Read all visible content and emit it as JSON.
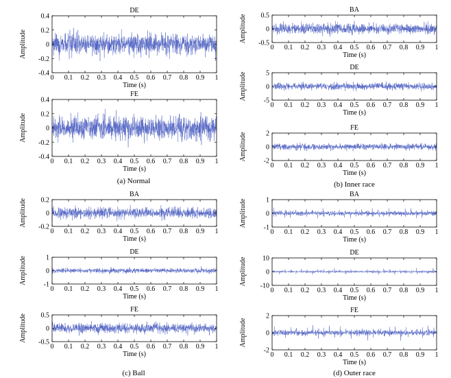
{
  "chart_data": [
    {
      "type": "line",
      "panel": "a",
      "title": "DE",
      "xlabel": "Time (s)",
      "ylabel": "Amplitude",
      "xlim": [
        0,
        1
      ],
      "ylim": [
        -0.4,
        0.4
      ],
      "xticks": [
        "0",
        "0.1",
        "0.2",
        "0.3",
        "0.4",
        "0.5",
        "0.6",
        "0.7",
        "0.8",
        "0.9",
        "1"
      ],
      "yticks": [
        "-0.4",
        "-0.2",
        "0",
        "0.2",
        "0.4"
      ],
      "noise_amplitude": 0.07,
      "spikes_per_second": 0,
      "color": "#4a5cc0"
    },
    {
      "type": "line",
      "panel": "a",
      "title": "FE",
      "xlabel": "Time (s)",
      "ylabel": "Amplitude",
      "xlim": [
        0,
        1
      ],
      "ylim": [
        -0.4,
        0.4
      ],
      "xticks": [
        "0",
        "0.1",
        "0.2",
        "0.3",
        "0.4",
        "0.5",
        "0.6",
        "0.7",
        "0.8",
        "0.9",
        "1"
      ],
      "yticks": [
        "-0.4",
        "-0.2",
        "0",
        "0.2",
        "0.4"
      ],
      "noise_amplitude": 0.08,
      "spikes_per_second": 0,
      "color": "#4a5cc0"
    },
    {
      "type": "line",
      "panel": "b",
      "title": "BA",
      "xlabel": "Time (s)",
      "ylabel": "Amplitude",
      "xlim": [
        0,
        1
      ],
      "ylim": [
        -0.5,
        0.5
      ],
      "xticks": [
        "0",
        "0.1",
        "0.2",
        "0.3",
        "0.4",
        "0.5",
        "0.6",
        "0.7",
        "0.8",
        "0.9",
        "1"
      ],
      "yticks": [
        "-0.5",
        "0",
        "0.5"
      ],
      "noise_amplitude": 0.09,
      "spikes_per_second": 0,
      "color": "#4a5cc0"
    },
    {
      "type": "line",
      "panel": "b",
      "title": "DE",
      "xlabel": "Time (s)",
      "ylabel": "Amplitude",
      "xlim": [
        0,
        1
      ],
      "ylim": [
        -5,
        5
      ],
      "xticks": [
        "0",
        "0.1",
        "0.2",
        "0.3",
        "0.4",
        "0.5",
        "0.6",
        "0.7",
        "0.8",
        "0.9",
        "1"
      ],
      "yticks": [
        "-5",
        "0",
        "5"
      ],
      "noise_amplitude": 0.6,
      "spikes_per_second": 10,
      "spike_amplitude": 2.5,
      "color": "#4a5cc0"
    },
    {
      "type": "line",
      "panel": "b",
      "title": "FE",
      "xlabel": "Time (s)",
      "ylabel": "Amplitude",
      "xlim": [
        0,
        1
      ],
      "ylim": [
        -2,
        2
      ],
      "xticks": [
        "0",
        "0.1",
        "0.2",
        "0.3",
        "0.4",
        "0.5",
        "0.6",
        "0.7",
        "0.8",
        "0.9",
        "1"
      ],
      "yticks": [
        "-2",
        "0",
        "2"
      ],
      "noise_amplitude": 0.22,
      "spikes_per_second": 0,
      "color": "#4a5cc0"
    },
    {
      "type": "line",
      "panel": "c",
      "title": "BA",
      "xlabel": "Time (s)",
      "ylabel": "Amplitude",
      "xlim": [
        0,
        1
      ],
      "ylim": [
        -0.2,
        0.2
      ],
      "xticks": [
        "0",
        "0.1",
        "0.2",
        "0.3",
        "0.4",
        "0.5",
        "0.6",
        "0.7",
        "0.8",
        "0.9",
        "1"
      ],
      "yticks": [
        "-0.2",
        "0",
        "0.2"
      ],
      "noise_amplitude": 0.04,
      "spikes_per_second": 0,
      "color": "#4a5cc0"
    },
    {
      "type": "line",
      "panel": "c",
      "title": "DE",
      "xlabel": "Time (s)",
      "ylabel": "Amplitude",
      "xlim": [
        0,
        1
      ],
      "ylim": [
        -1,
        1
      ],
      "xticks": [
        "0",
        "0.1",
        "0.2",
        "0.3",
        "0.4",
        "0.5",
        "0.6",
        "0.7",
        "0.8",
        "0.9",
        "1"
      ],
      "yticks": [
        "-1",
        "0",
        "1"
      ],
      "noise_amplitude": 0.09,
      "spikes_per_second": 0,
      "color": "#4a5cc0"
    },
    {
      "type": "line",
      "panel": "c",
      "title": "FE",
      "xlabel": "Time (s)",
      "ylabel": "Amplitude",
      "xlim": [
        0,
        1
      ],
      "ylim": [
        -0.5,
        0.5
      ],
      "xticks": [
        "0",
        "0.1",
        "0.2",
        "0.3",
        "0.4",
        "0.5",
        "0.6",
        "0.7",
        "0.8",
        "0.9",
        "1"
      ],
      "yticks": [
        "-0.5",
        "0",
        "0.5"
      ],
      "noise_amplitude": 0.09,
      "spikes_per_second": 0,
      "color": "#4a5cc0"
    },
    {
      "type": "line",
      "panel": "d",
      "title": "BA",
      "xlabel": "Time (s)",
      "ylabel": "Amplitude",
      "xlim": [
        0,
        1
      ],
      "ylim": [
        -1,
        1
      ],
      "xticks": [
        "0",
        "0.1",
        "0.2",
        "0.3",
        "0.4",
        "0.5",
        "0.6",
        "0.7",
        "0.8",
        "0.9",
        "1"
      ],
      "yticks": [
        "-1",
        "0",
        "1"
      ],
      "noise_amplitude": 0.07,
      "spikes_per_second": 30,
      "spike_amplitude": 0.45,
      "color": "#4a5cc0"
    },
    {
      "type": "line",
      "panel": "d",
      "title": "DE",
      "xlabel": "Time (s)",
      "ylabel": "Amplitude",
      "xlim": [
        0,
        1
      ],
      "ylim": [
        -10,
        10
      ],
      "xticks": [
        "0",
        "0.1",
        "0.2",
        "0.3",
        "0.4",
        "0.5",
        "0.6",
        "0.7",
        "0.8",
        "0.9",
        "1"
      ],
      "yticks": [
        "-10",
        "0",
        "10"
      ],
      "noise_amplitude": 0.35,
      "spikes_per_second": 30,
      "spike_amplitude": 3.0,
      "color": "#4a5cc0"
    },
    {
      "type": "line",
      "panel": "d",
      "title": "FE",
      "xlabel": "Time (s)",
      "ylabel": "Amplitude",
      "xlim": [
        0,
        1
      ],
      "ylim": [
        -2,
        2
      ],
      "xticks": [
        "0",
        "0.1",
        "0.2",
        "0.3",
        "0.4",
        "0.5",
        "0.6",
        "0.7",
        "0.8",
        "0.9",
        "1"
      ],
      "yticks": [
        "-2",
        "0",
        "2"
      ],
      "noise_amplitude": 0.14,
      "spikes_per_second": 30,
      "spike_amplitude": 1.0,
      "color": "#4a5cc0"
    }
  ],
  "captions": {
    "a": "(a) Normal",
    "b": "(b) Inner race",
    "c": "(c) Ball",
    "d": "(d) Outer race"
  }
}
